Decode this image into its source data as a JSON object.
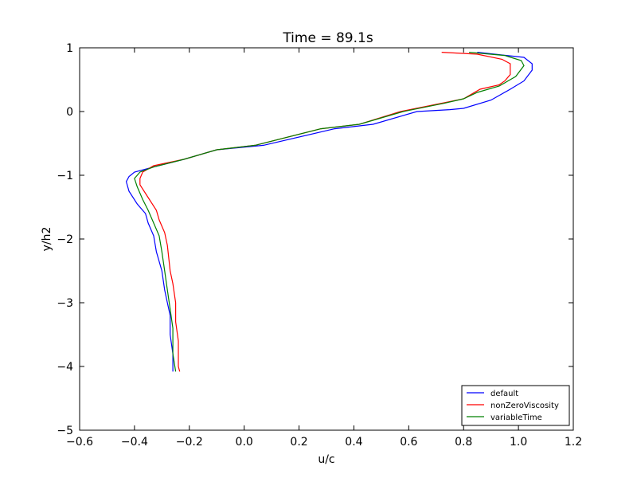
{
  "chart_data": {
    "type": "line",
    "title": "Time = 89.1s",
    "xlabel": "u/c",
    "ylabel": "y/h2",
    "xlim": [
      -0.6,
      1.2
    ],
    "ylim": [
      -5,
      1
    ],
    "xticks": [
      "−0.6",
      "−0.4",
      "−0.2",
      "0.0",
      "0.2",
      "0.4",
      "0.6",
      "0.8",
      "1.0",
      "1.2"
    ],
    "yticks": [
      "1",
      "0",
      "−1",
      "−2",
      "−3",
      "−4",
      "−5"
    ],
    "grid": false,
    "legend_position": "lower-right",
    "series": [
      {
        "name": "default",
        "color": "#0000ff",
        "x": [
          0.85,
          1.02,
          1.05,
          1.05,
          1.02,
          0.97,
          0.9,
          0.8,
          0.75,
          0.63,
          0.47,
          0.33,
          0.07,
          -0.1,
          -0.22,
          -0.33,
          -0.4,
          -0.42,
          -0.43,
          -0.42,
          -0.39,
          -0.36,
          -0.35,
          -0.33,
          -0.32,
          -0.3,
          -0.29,
          -0.28,
          -0.27,
          -0.27,
          -0.26,
          -0.26
        ],
        "y": [
          0.93,
          0.85,
          0.75,
          0.65,
          0.48,
          0.35,
          0.18,
          0.05,
          0.03,
          0.0,
          -0.2,
          -0.27,
          -0.53,
          -0.6,
          -0.75,
          -0.87,
          -0.95,
          -1.02,
          -1.1,
          -1.25,
          -1.45,
          -1.6,
          -1.75,
          -1.95,
          -2.2,
          -2.5,
          -2.8,
          -3.0,
          -3.2,
          -3.5,
          -3.8,
          -4.08
        ]
      },
      {
        "name": "nonZeroViscosity",
        "color": "#ff0000",
        "x": [
          0.72,
          0.85,
          0.94,
          0.97,
          0.97,
          0.95,
          0.93,
          0.86,
          0.8,
          0.72,
          0.57,
          0.42,
          0.28,
          0.04,
          -0.1,
          -0.22,
          -0.33,
          -0.37,
          -0.38,
          -0.38,
          -0.35,
          -0.32,
          -0.31,
          -0.29,
          -0.28,
          -0.27,
          -0.26,
          -0.25,
          -0.25,
          -0.24,
          -0.24,
          -0.24,
          -0.235
        ],
        "y": [
          0.93,
          0.9,
          0.82,
          0.75,
          0.58,
          0.48,
          0.42,
          0.35,
          0.2,
          0.13,
          0.0,
          -0.2,
          -0.27,
          -0.53,
          -0.6,
          -0.75,
          -0.85,
          -0.95,
          -1.05,
          -1.15,
          -1.35,
          -1.55,
          -1.7,
          -1.9,
          -2.1,
          -2.5,
          -2.7,
          -3.0,
          -3.3,
          -3.6,
          -3.8,
          -4.0,
          -4.08
        ]
      },
      {
        "name": "variableTime",
        "color": "#008000",
        "x": [
          0.82,
          0.95,
          1.01,
          1.02,
          0.99,
          0.93,
          0.85,
          0.8,
          0.73,
          0.58,
          0.42,
          0.28,
          0.04,
          -0.1,
          -0.22,
          -0.33,
          -0.38,
          -0.4,
          -0.39,
          -0.37,
          -0.35,
          -0.33,
          -0.31,
          -0.3,
          -0.29,
          -0.28,
          -0.27,
          -0.26,
          -0.26,
          -0.25
        ],
        "y": [
          0.93,
          0.88,
          0.8,
          0.72,
          0.55,
          0.4,
          0.3,
          0.2,
          0.13,
          0.0,
          -0.2,
          -0.27,
          -0.53,
          -0.6,
          -0.75,
          -0.87,
          -0.95,
          -1.05,
          -1.18,
          -1.38,
          -1.55,
          -1.75,
          -1.95,
          -2.2,
          -2.5,
          -2.8,
          -3.1,
          -3.4,
          -3.8,
          -4.08
        ]
      }
    ]
  }
}
